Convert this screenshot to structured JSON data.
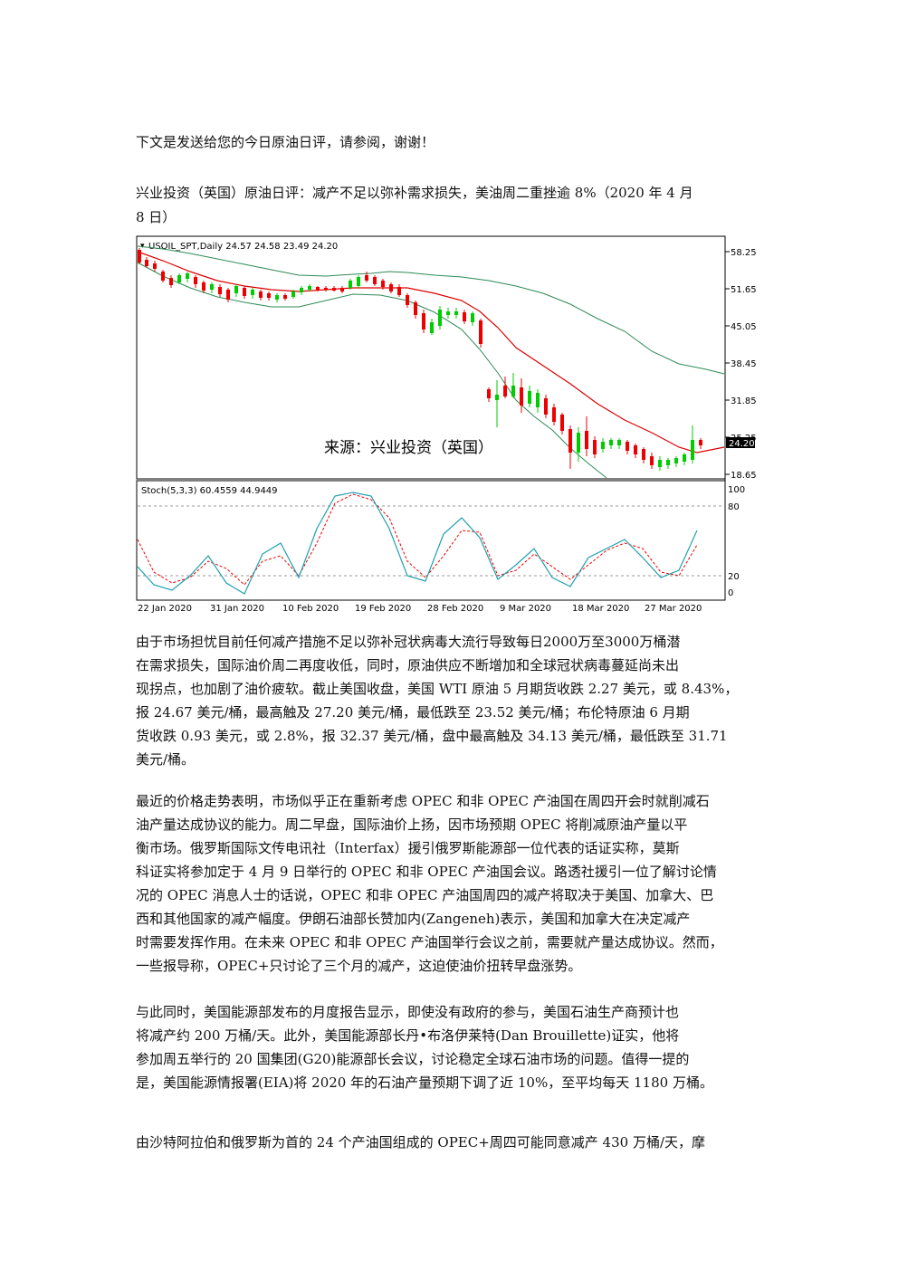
{
  "intro": "下文是发送给您的今日原油日评，请参阅，谢谢！",
  "title_lines": [
    "兴业投资（英国）原油日评：减产不足以弥补需求损失，美油周二重挫逾 8%（2020 年 4 月",
    "8 日）"
  ],
  "chart": {
    "header": "USOIL_SPT,Daily  24.57 24.58 23.49 24.20",
    "watermark": "来源：兴业投资（英国）",
    "price_ticks": [
      "58.25",
      "51.65",
      "45.05",
      "38.45",
      "31.85",
      "25.25",
      "18.65"
    ],
    "current_price": "24.20",
    "stoch_label": "Stoch(5,3,3) 60.4559 44.9449",
    "stoch_ticks": [
      "100",
      "80",
      "20",
      "0"
    ],
    "date_labels": [
      "22 Jan 2020",
      "31 Jan 2020",
      "10 Feb 2020",
      "19 Feb 2020",
      "28 Feb 2020",
      "9 Mar 2020",
      "18 Mar 2020",
      "27 Mar 2020"
    ],
    "colors": {
      "up": "#00cc00",
      "down": "#ee0000",
      "band": "#2e8b57",
      "ma": "#dd0000",
      "stoch_main": "#20a0b0",
      "stoch_signal": "#ee0000"
    }
  },
  "paragraphs": [
    {
      "lines": [
        "由于市场担忧目前任何减产措施不足以弥补冠状病毒大流行导致每日2000万至3000万桶潜",
        "在需求损失，国际油价周二再度收低，同时，原油供应不断增加和全球冠状病毒蔓延尚未出",
        "现拐点，也加剧了油价疲软。截止美国收盘，美国 WTI 原油 5 月期货收跌 2.27 美元，或 8.43%，",
        "报 24.67 美元/桶，最高触及 27.20 美元/桶，最低跌至 23.52 美元/桶；布伦特原油 6 月期",
        "货收跌 0.93 美元，或 2.8%，报 32.37 美元/桶，盘中最高触及 34.13 美元/桶，最低跌至 31.71",
        "美元/桶。"
      ]
    },
    {
      "lines": [
        "最近的价格走势表明，市场似乎正在重新考虑 OPEC 和非 OPEC 产油国在周四开会时就削减石",
        "油产量达成协议的能力。周二早盘，国际油价上扬，因市场预期 OPEC 将削减原油产量以平",
        "衡市场。俄罗斯国际文传电讯社（Interfax）援引俄罗斯能源部一位代表的话证实称，莫斯",
        "科证实将参加定于 4 月 9 日举行的 OPEC 和非 OPEC 产油国会议。路透社援引一位了解讨论情",
        "况的 OPEC 消息人士的话说，OPEC 和非 OPEC 产油国周四的减产将取决于美国、加拿大、巴",
        "西和其他国家的减产幅度。伊朗石油部长赞加内(Zangeneh)表示，美国和加拿大在决定减产",
        "时需要发挥作用。在未来 OPEC 和非 OPEC 产油国举行会议之前，需要就产量达成协议。然而，",
        "一些报导称，OPEC+只讨论了三个月的减产，这迫使油价扭转早盘涨势。"
      ]
    },
    {
      "lines": [
        "与此同时，美国能源部发布的月度报告显示，即使没有政府的参与，美国石油生产商预计也",
        "将减产约 200 万桶/天。此外，美国能源部长丹•布洛伊莱特(Dan Brouillette)证实，他将",
        "参加周五举行的 20 国集团(G20)能源部长会议，讨论稳定全球石油市场的问题。值得一提的",
        "是，美国能源情报署(EIA)将 2020 年的石油产量预期下调了近 10%，至平均每天 1180 万桶。"
      ]
    },
    {
      "lines": [
        "由沙特阿拉伯和俄罗斯为首的 24 个产油国组成的 OPEC+周四可能同意减产 430 万桶/天，摩"
      ]
    }
  ]
}
